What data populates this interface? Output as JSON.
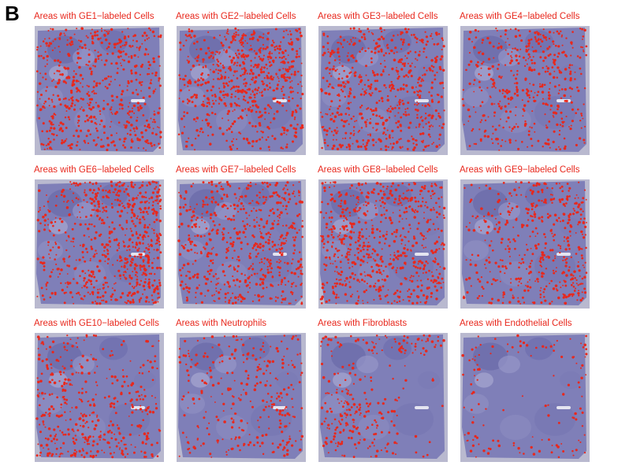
{
  "panel_label": "B",
  "accent_color": "#e8281d",
  "tissue_color": "#7f7fb8",
  "panels": [
    {
      "title": "Areas with GE1−labeled Cells",
      "density": 0.55,
      "focus": "diffuse"
    },
    {
      "title": "Areas with GE2−labeled Cells",
      "density": 0.75,
      "focus": "upper-right"
    },
    {
      "title": "Areas with GE3−labeled Cells",
      "density": 0.6,
      "focus": "diffuse"
    },
    {
      "title": "Areas with GE4−labeled Cells",
      "density": 0.5,
      "focus": "upper-right"
    },
    {
      "title": "Areas with GE6−labeled Cells",
      "density": 0.85,
      "focus": "right"
    },
    {
      "title": "Areas with GE7−labeled Cells",
      "density": 0.6,
      "focus": "diffuse"
    },
    {
      "title": "Areas with GE8−labeled Cells",
      "density": 0.65,
      "focus": "diffuse"
    },
    {
      "title": "Areas with GE9−labeled Cells",
      "density": 0.6,
      "focus": "right"
    },
    {
      "title": "Areas with GE10−labeled Cells",
      "density": 0.55,
      "focus": "left-bottom"
    },
    {
      "title": "Areas with Neutrophils",
      "density": 0.3,
      "focus": "diffuse"
    },
    {
      "title": "Areas with Fibroblasts",
      "density": 0.5,
      "focus": "lower-left"
    },
    {
      "title": "Areas with Endothelial Cells",
      "density": 0.15,
      "focus": "edges"
    }
  ]
}
